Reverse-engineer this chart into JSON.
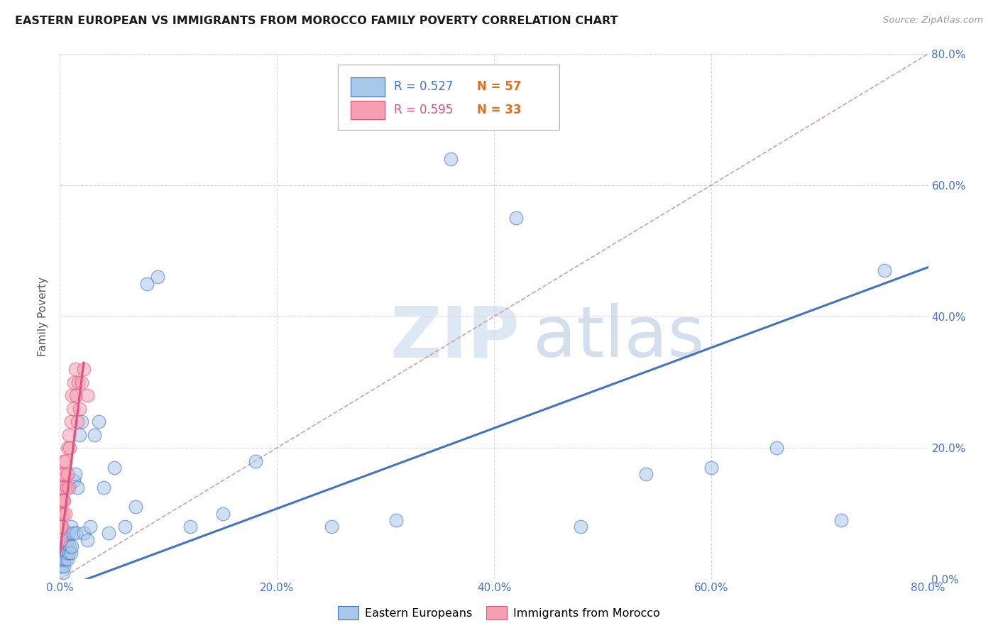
{
  "title": "EASTERN EUROPEAN VS IMMIGRANTS FROM MOROCCO FAMILY POVERTY CORRELATION CHART",
  "source": "Source: ZipAtlas.com",
  "ylabel_label": "Family Poverty",
  "blue_color": "#a8c8e8",
  "pink_color": "#f4a0b0",
  "line_blue": "#4472c4",
  "line_pink": "#e05080",
  "diagonal_color": "#d0a0a8",
  "watermark_zip": "ZIP",
  "watermark_atlas": "atlas",
  "blue_scatter_x": [
    0.001,
    0.001,
    0.002,
    0.002,
    0.002,
    0.003,
    0.003,
    0.003,
    0.003,
    0.004,
    0.004,
    0.004,
    0.005,
    0.005,
    0.005,
    0.006,
    0.006,
    0.007,
    0.007,
    0.008,
    0.008,
    0.009,
    0.01,
    0.01,
    0.011,
    0.012,
    0.013,
    0.014,
    0.015,
    0.016,
    0.018,
    0.02,
    0.022,
    0.025,
    0.028,
    0.032,
    0.036,
    0.04,
    0.045,
    0.05,
    0.06,
    0.07,
    0.08,
    0.09,
    0.12,
    0.15,
    0.18,
    0.25,
    0.31,
    0.36,
    0.42,
    0.48,
    0.54,
    0.6,
    0.66,
    0.72,
    0.76
  ],
  "blue_scatter_y": [
    0.03,
    0.02,
    0.04,
    0.02,
    0.03,
    0.01,
    0.05,
    0.03,
    0.04,
    0.02,
    0.05,
    0.03,
    0.04,
    0.06,
    0.03,
    0.05,
    0.04,
    0.06,
    0.03,
    0.04,
    0.07,
    0.05,
    0.04,
    0.08,
    0.05,
    0.07,
    0.15,
    0.16,
    0.07,
    0.14,
    0.22,
    0.24,
    0.07,
    0.06,
    0.08,
    0.22,
    0.24,
    0.14,
    0.07,
    0.17,
    0.08,
    0.11,
    0.45,
    0.46,
    0.08,
    0.1,
    0.18,
    0.08,
    0.09,
    0.64,
    0.55,
    0.08,
    0.16,
    0.17,
    0.2,
    0.09,
    0.47
  ],
  "pink_scatter_x": [
    0.001,
    0.001,
    0.001,
    0.002,
    0.002,
    0.002,
    0.002,
    0.003,
    0.003,
    0.003,
    0.003,
    0.004,
    0.004,
    0.005,
    0.005,
    0.006,
    0.007,
    0.007,
    0.008,
    0.008,
    0.009,
    0.01,
    0.011,
    0.012,
    0.013,
    0.014,
    0.015,
    0.016,
    0.017,
    0.018,
    0.02,
    0.022,
    0.025
  ],
  "pink_scatter_y": [
    0.06,
    0.08,
    0.1,
    0.08,
    0.12,
    0.14,
    0.16,
    0.1,
    0.12,
    0.14,
    0.18,
    0.12,
    0.16,
    0.1,
    0.18,
    0.14,
    0.16,
    0.2,
    0.14,
    0.22,
    0.2,
    0.24,
    0.28,
    0.26,
    0.3,
    0.32,
    0.28,
    0.24,
    0.3,
    0.26,
    0.3,
    0.32,
    0.28
  ],
  "blue_trend_x": [
    0.0,
    0.8
  ],
  "blue_trend_y": [
    -0.015,
    0.475
  ],
  "pink_trend_x": [
    0.0,
    0.022
  ],
  "pink_trend_y": [
    0.04,
    0.33
  ],
  "xlim": [
    0.0,
    0.8
  ],
  "ylim": [
    0.0,
    0.8
  ],
  "xtick_positions": [
    0.0,
    0.2,
    0.4,
    0.6,
    0.8
  ],
  "ytick_positions": [
    0.0,
    0.2,
    0.4,
    0.6,
    0.8
  ],
  "grid_color": "#d8d8e8",
  "background_color": "#ffffff",
  "title_fontsize": 11.5,
  "tick_color": "#4472c4",
  "legend_blue_text": "R = 0.527",
  "legend_blue_n": "N = 57",
  "legend_pink_text": "R = 0.595",
  "legend_pink_n": "N = 33",
  "bottom_legend_blue": "Eastern Europeans",
  "bottom_legend_pink": "Immigrants from Morocco"
}
